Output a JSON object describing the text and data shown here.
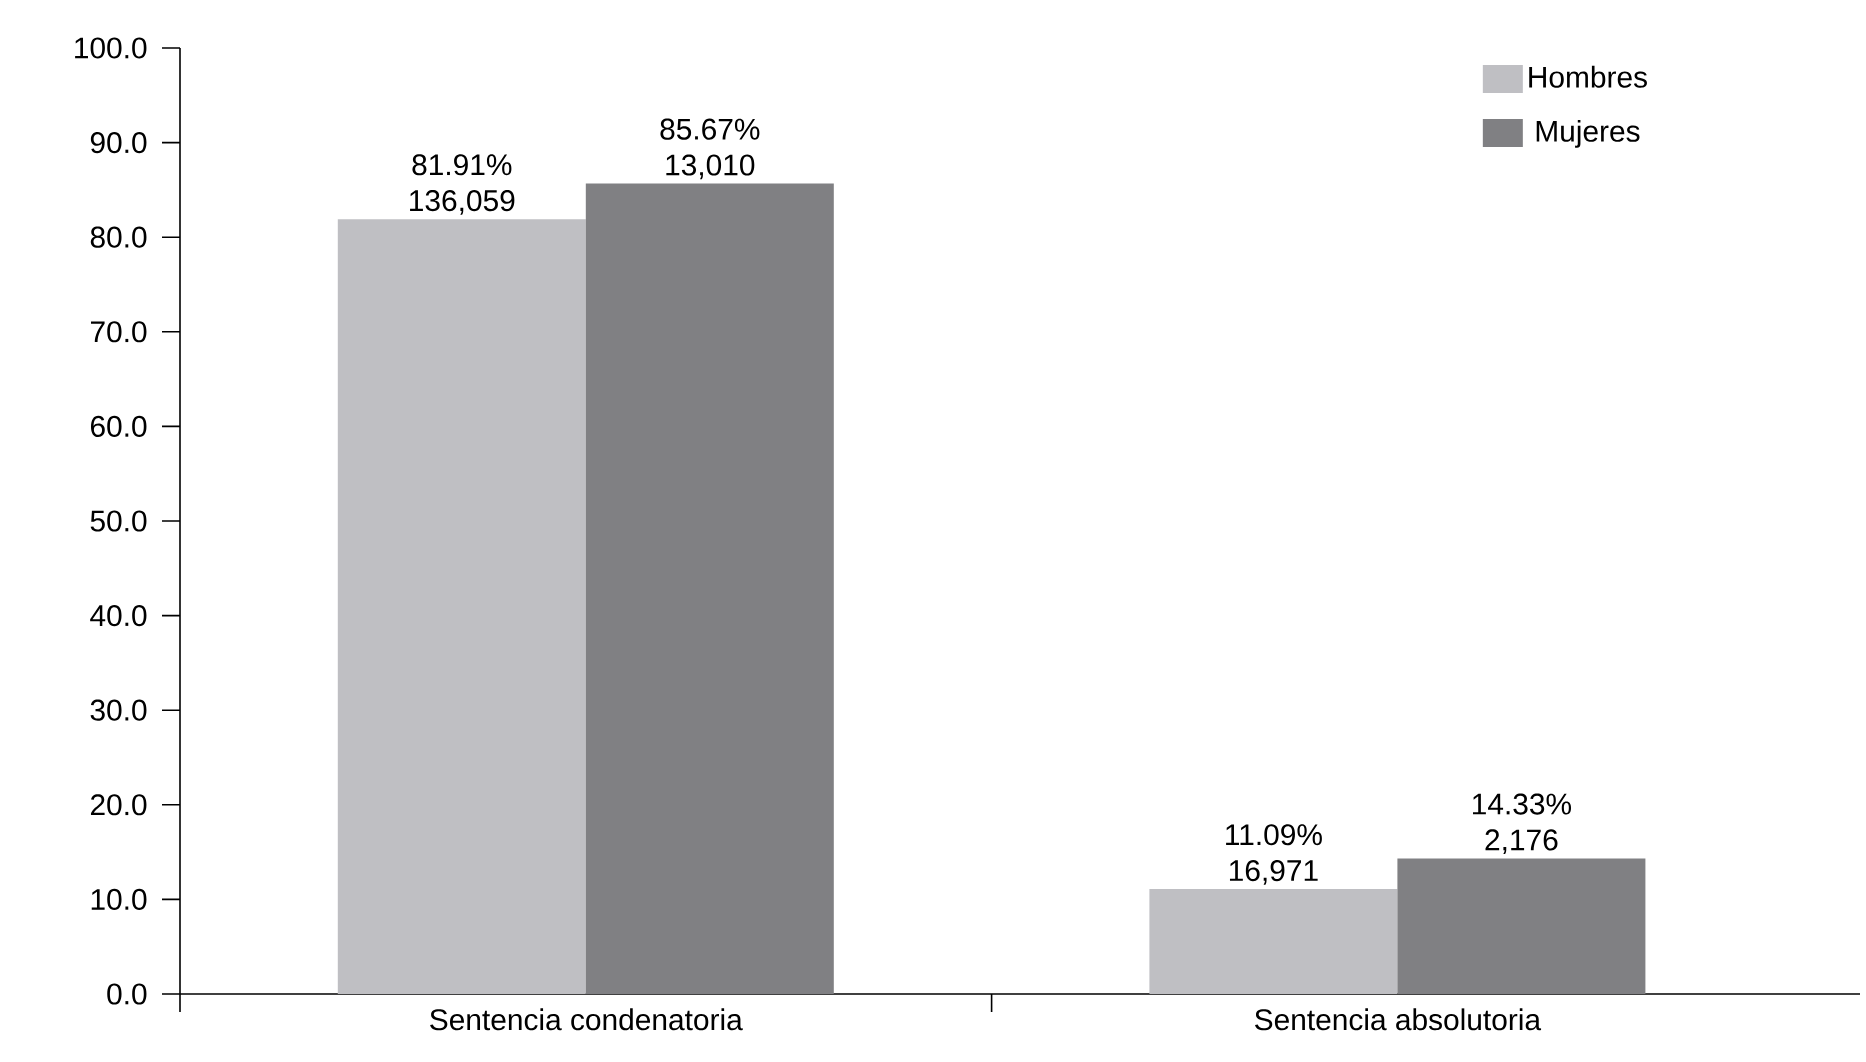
{
  "chart_data": {
    "type": "bar",
    "categories": [
      "Sentencia condenatoria",
      "Sentencia absolutoria"
    ],
    "series": [
      {
        "name": "Hombres",
        "color": "#bfbfc3",
        "values": [
          81.91,
          11.09
        ],
        "value_labels": [
          "81.91% 136,059",
          "11.09% 16,971"
        ]
      },
      {
        "name": "Mujeres",
        "color": "#808083",
        "values": [
          85.67,
          14.33
        ],
        "value_labels": [
          "85.67% 13,010",
          "14.33% 2,176"
        ]
      }
    ],
    "ylim": [
      0,
      100
    ],
    "yticks": [
      {
        "value": 0,
        "label": "0.0"
      },
      {
        "value": 10,
        "label": "10.0"
      },
      {
        "value": 20,
        "label": "20.0"
      },
      {
        "value": 30,
        "label": "30.0"
      },
      {
        "value": 40,
        "label": "40.0"
      },
      {
        "value": 50,
        "label": "50.0"
      },
      {
        "value": 60,
        "label": "60.0"
      },
      {
        "value": 70,
        "label": "70.0"
      },
      {
        "value": 80,
        "label": "80.0"
      },
      {
        "value": 90,
        "label": "90.0"
      },
      {
        "value": 100,
        "label": "100.0"
      }
    ],
    "grid": false,
    "legend": "top right"
  }
}
